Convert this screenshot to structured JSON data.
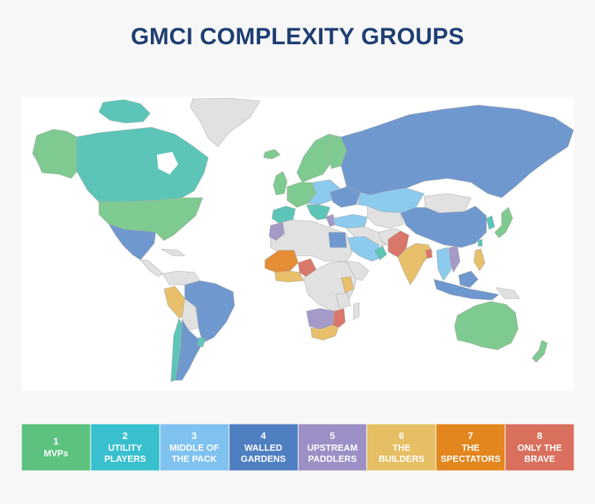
{
  "title": "GMCI COMPLEXITY GROUPS",
  "map": {
    "background_color": "#ffffff",
    "no_data_color": "#e1e1e1",
    "border_color": "#a8a8a8"
  },
  "groups": [
    {
      "number": "1",
      "label": "MVPs",
      "color": "#5dc27f",
      "map_color": "#7fca90"
    },
    {
      "number": "2",
      "label": "UTILITY\nPLAYERS",
      "color": "#38c0cf",
      "map_color": "#5cc5b8"
    },
    {
      "number": "3",
      "label": "MIDDLE OF\nTHE PACK",
      "color": "#7fc2ef",
      "map_color": "#8ccaee"
    },
    {
      "number": "4",
      "label": "WALLED\nGARDENS",
      "color": "#4f7fc1",
      "map_color": "#6f98cf"
    },
    {
      "number": "5",
      "label": "UPSTREAM\nPADDLERS",
      "color": "#9b8fc5",
      "map_color": "#a59ac8"
    },
    {
      "number": "6",
      "label": "THE\nBUILDERS",
      "color": "#e6be63",
      "map_color": "#e8bf6a"
    },
    {
      "number": "7",
      "label": "THE\nSPECTATORS",
      "color": "#e2861d",
      "map_color": "#e58d35"
    },
    {
      "number": "8",
      "label": "ONLY THE\nBRAVE",
      "color": "#d9705e",
      "map_color": "#d9776a"
    }
  ]
}
